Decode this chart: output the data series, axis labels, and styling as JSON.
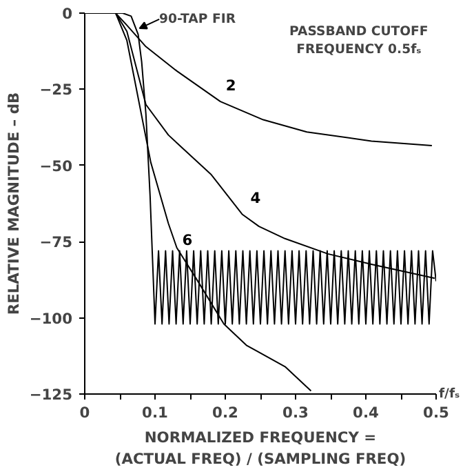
{
  "chart_data": {
    "type": "line",
    "title": "PASSBAND CUTOFF FREQUENCY 0.5fₛ",
    "xlabel": "NORMALIZED FREQUENCY =\n(ACTUAL FREQ) / (SAMPLING FREQ)",
    "ylabel": "RELATIVE MAGNITUDE – dB",
    "xlim": [
      0,
      0.5
    ],
    "ylim": [
      -125,
      0
    ],
    "xticks": [
      0,
      {
        "value": 0.05,
        "label": null
      },
      0.1,
      {
        "value": 0.15,
        "label": null
      },
      0.2,
      {
        "value": 0.25,
        "label": null
      },
      0.3,
      {
        "value": 0.35,
        "label": null
      },
      0.4,
      {
        "value": 0.45,
        "label": null
      },
      0.5
    ],
    "yticks": [
      0,
      -25,
      -50,
      -75,
      -100,
      -125
    ],
    "grid": false,
    "marker": "none",
    "line_style": "solid",
    "annotations": [
      "f/fₛ"
    ],
    "series": [
      {
        "name": "2",
        "color": "#000000",
        "x": [
          0.0,
          0.044,
          0.06,
          0.087,
          0.131,
          0.193,
          0.254,
          0.316,
          0.408,
          0.494
        ],
        "values": [
          0,
          0,
          -4,
          -11,
          -19,
          -29,
          -35,
          -39,
          -42,
          -43.5
        ]
      },
      {
        "name": "4",
        "color": "#000000",
        "x": [
          0.0,
          0.044,
          0.06,
          0.087,
          0.119,
          0.18,
          0.224,
          0.248,
          0.285,
          0.346,
          0.409,
          0.498
        ],
        "values": [
          0,
          0,
          -6,
          -30,
          -40,
          -53,
          -66,
          -70,
          -74,
          -79,
          -82.5,
          -87
        ]
      },
      {
        "name": "6",
        "color": "#000000",
        "x": [
          0.0,
          0.044,
          0.06,
          0.094,
          0.119,
          0.131,
          0.161,
          0.198,
          0.23,
          0.285,
          0.322
        ],
        "values": [
          0,
          0,
          -9,
          -49,
          -69,
          -77,
          -88,
          -102,
          -109,
          -116,
          -124
        ]
      },
      {
        "name": "90-TAP FIR",
        "color": "#000000",
        "x": [
          0.0,
          0.054,
          0.066,
          0.076,
          0.081,
          0.087,
          0.093,
          0.1,
          0.105,
          0.11,
          0.115,
          0.12,
          0.125,
          0.13,
          0.135,
          0.14,
          0.145,
          0.15,
          0.155,
          0.16,
          0.165,
          0.17,
          0.175,
          0.18,
          0.185,
          0.19,
          0.195,
          0.2,
          0.205,
          0.21,
          0.215,
          0.22,
          0.225,
          0.23,
          0.235,
          0.24,
          0.245,
          0.25,
          0.255,
          0.26,
          0.265,
          0.27,
          0.275,
          0.28,
          0.285,
          0.29,
          0.295,
          0.3,
          0.305,
          0.31,
          0.315,
          0.32,
          0.325,
          0.33,
          0.335,
          0.34,
          0.345,
          0.35,
          0.355,
          0.36,
          0.365,
          0.37,
          0.375,
          0.38,
          0.385,
          0.39,
          0.395,
          0.4,
          0.405,
          0.41,
          0.415,
          0.42,
          0.425,
          0.43,
          0.435,
          0.44,
          0.445,
          0.45,
          0.455,
          0.46,
          0.465,
          0.47,
          0.475,
          0.48,
          0.485,
          0.49,
          0.495,
          0.5
        ],
        "values": [
          0,
          0,
          -1,
          -7,
          -16,
          -33,
          -60,
          -102,
          -78,
          -102,
          -78,
          -102,
          -78,
          -102,
          -78,
          -102,
          -78,
          -102,
          -78,
          -102,
          -78,
          -102,
          -78,
          -102,
          -78,
          -102,
          -78,
          -102,
          -78,
          -102,
          -78,
          -102,
          -78,
          -102,
          -78,
          -102,
          -78,
          -102,
          -78,
          -102,
          -78,
          -102,
          -78,
          -102,
          -78,
          -102,
          -78,
          -102,
          -78,
          -102,
          -78,
          -102,
          -78,
          -102,
          -78,
          -102,
          -78,
          -102,
          -78,
          -102,
          -78,
          -102,
          -78,
          -102,
          -78,
          -102,
          -78,
          -102,
          -78,
          -102,
          -78,
          -102,
          -78,
          -102,
          -78,
          -102,
          -78,
          -102,
          -78,
          -102,
          -78,
          -102,
          -78,
          -102,
          -78,
          -102,
          -78,
          -88
        ]
      }
    ]
  }
}
